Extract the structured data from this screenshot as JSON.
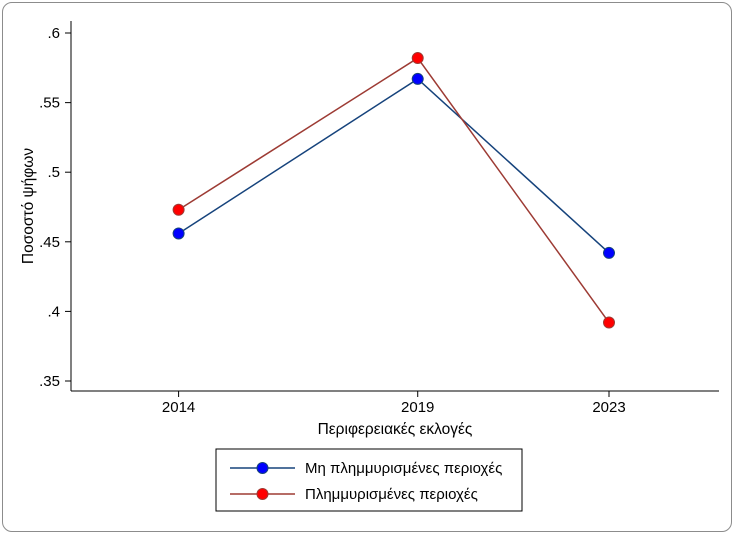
{
  "figure": {
    "background_color": "#ffffff",
    "border_color": "#8c8c8c",
    "text_color": "#000000"
  },
  "chart_data": {
    "type": "line",
    "title": "",
    "xlabel": "Περιφερειακές εκλογές",
    "ylabel": "Ποσοστό ψήφων",
    "x": [
      2014,
      2019,
      2023
    ],
    "xtick_labels": [
      "2014",
      "2019",
      "2023"
    ],
    "xlim": [
      2011.75,
      2025.3
    ],
    "ylim": [
      0.35,
      0.6
    ],
    "yticks": [
      0.35,
      0.4,
      0.45,
      0.5,
      0.55,
      0.6
    ],
    "ytick_labels": [
      ".35",
      ".4",
      ".45",
      ".5",
      ".55",
      ".6"
    ],
    "grid": false,
    "legend_position": "bottom",
    "legend_border": true,
    "series": [
      {
        "name": "Μη πλημμυρισμένες περιοχές",
        "values": [
          0.456,
          0.567,
          0.442
        ],
        "line_color": "#16437c",
        "marker_color": "#0000ff",
        "marker": "circle"
      },
      {
        "name": "Πλημμυρισμένες περιοχές",
        "values": [
          0.473,
          0.582,
          0.392
        ],
        "line_color": "#9d3b34",
        "marker_color": "#ff0000",
        "marker": "circle"
      }
    ]
  }
}
